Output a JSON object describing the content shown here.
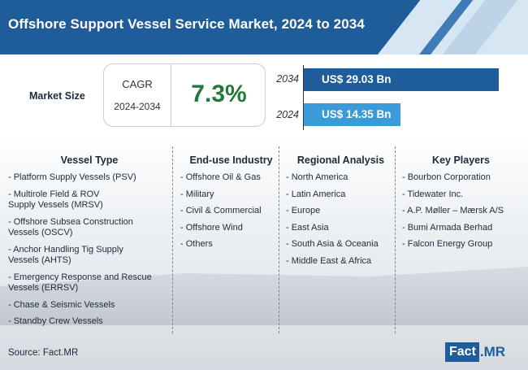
{
  "header": {
    "title": "Offshore Support Vessel Service Market, 2024 to 2034",
    "banner_color": "#1f5c9a"
  },
  "market_size": {
    "label": "Market Size",
    "cagr_label": "CAGR",
    "cagr_period": "2024-2034",
    "cagr_value": "7.3%",
    "cagr_color": "#237a3b"
  },
  "bars": [
    {
      "year": "2034",
      "value_text": "US$ 29.03 Bn",
      "value": 29.03,
      "color": "#1f5c9a"
    },
    {
      "year": "2024",
      "value_text": "US$ 14.35 Bn",
      "value": 14.35,
      "color": "#3b9ad8"
    }
  ],
  "columns": [
    {
      "title": "Vessel Type",
      "items": [
        "- Platform Supply Vessels (PSV)",
        "- Multirole Field & ROV\n  Supply Vessels (MRSV)",
        "- Offshore Subsea Construction\n  Vessels (OSCV)",
        "- Anchor Handling Tig Supply\n  Vessels (AHTS)",
        "- Emergency Response and Rescue\n  Vessels (ERRSV)",
        "- Chase & Seismic Vessels",
        "- Standby Crew Vessels"
      ]
    },
    {
      "title": "End-use Industry",
      "items": [
        "- Offshore Oil & Gas",
        "- Military",
        "- Civil & Commercial",
        "- Offshore Wind",
        "- Others"
      ]
    },
    {
      "title": "Regional Analysis",
      "items": [
        "- North America",
        "- Latin America",
        "- Europe",
        "- East Asia",
        "- South Asia & Oceania",
        "- Middle East & Africa"
      ]
    },
    {
      "title": "Key Players",
      "items": [
        "- Bourbon Corporation",
        "- Tidewater Inc.",
        "- A.P. Møller – Mærsk A/S",
        "- Bumi Armada Berhad",
        "- Falcon Energy Group"
      ]
    }
  ],
  "footer": {
    "source": "Source: Fact.MR",
    "logo_left": "Fact",
    "logo_right": ".MR"
  }
}
